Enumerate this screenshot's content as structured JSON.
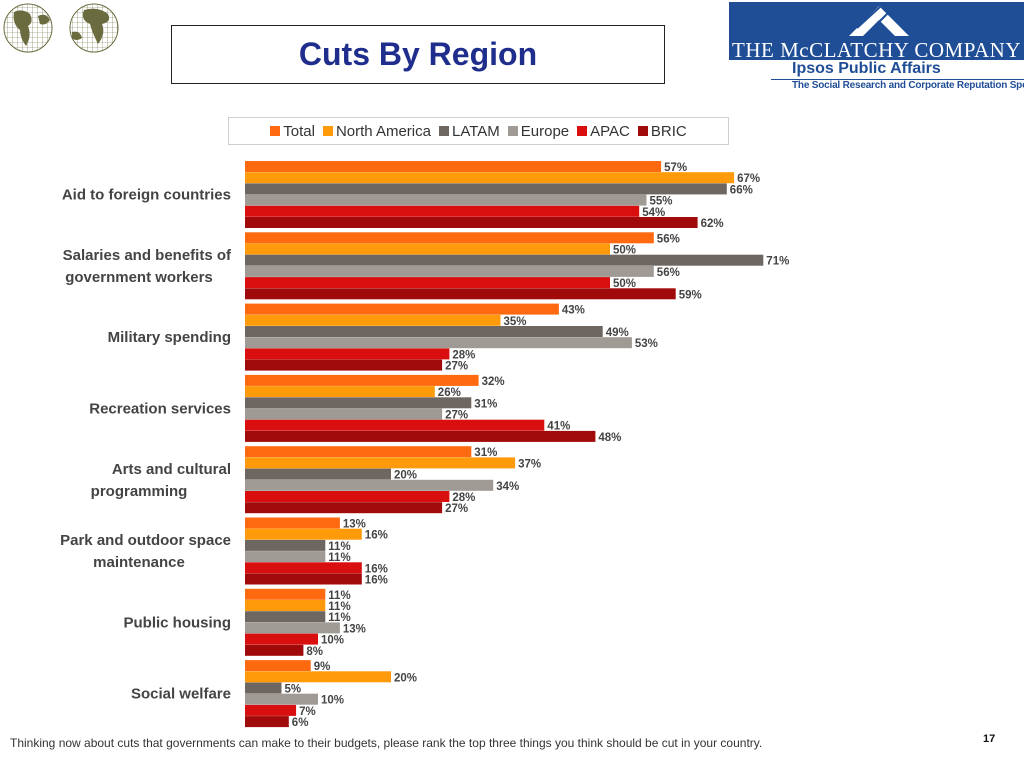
{
  "title": "Cuts By Region",
  "brand": {
    "name": "THE McCLATCHY COMPANY",
    "partner": "Ipsos Public Affairs",
    "tagline": "The Social Research and Corporate Reputation Specialists"
  },
  "colors": {
    "title": "#1f2e8c",
    "Total": "#ff6a10",
    "North America": "#ff9a0a",
    "LATAM": "#6e6660",
    "Europe": "#a09a94",
    "APAC": "#d90f0f",
    "BRIC": "#a10a0a",
    "label_text": "#444444"
  },
  "chart_data": {
    "type": "bar",
    "orientation": "horizontal",
    "categories": [
      "Aid to foreign countries",
      "Salaries and benefits of government workers",
      "Military spending",
      "Recreation services",
      "Arts and cultural programming",
      "Park and outdoor space maintenance",
      "Public housing",
      "Social welfare"
    ],
    "category_lines": [
      [
        "Aid to foreign countries"
      ],
      [
        "Salaries and benefits of",
        "government workers"
      ],
      [
        "Military spending"
      ],
      [
        "Recreation services"
      ],
      [
        "Arts and cultural",
        "programming"
      ],
      [
        "Park and outdoor space",
        "maintenance"
      ],
      [
        "Public housing"
      ],
      [
        "Social welfare"
      ]
    ],
    "series": [
      {
        "name": "Total",
        "values": [
          57,
          56,
          43,
          32,
          31,
          13,
          11,
          9
        ]
      },
      {
        "name": "North America",
        "values": [
          67,
          50,
          35,
          26,
          37,
          16,
          11,
          20
        ]
      },
      {
        "name": "LATAM",
        "values": [
          66,
          71,
          49,
          31,
          20,
          11,
          11,
          5
        ]
      },
      {
        "name": "Europe",
        "values": [
          55,
          56,
          53,
          27,
          34,
          11,
          13,
          10
        ]
      },
      {
        "name": "APAC",
        "values": [
          54,
          50,
          28,
          41,
          28,
          16,
          10,
          7
        ]
      },
      {
        "name": "BRIC",
        "values": [
          62,
          59,
          27,
          48,
          27,
          16,
          8,
          6
        ]
      }
    ],
    "value_suffix": "%",
    "xlim": [
      0,
      100
    ],
    "legend_position": "top",
    "grid": false
  },
  "footnote": "Thinking now about cuts that governments can make to their budgets, please rank the top three things you think should be cut in your country.",
  "page_number": "17"
}
